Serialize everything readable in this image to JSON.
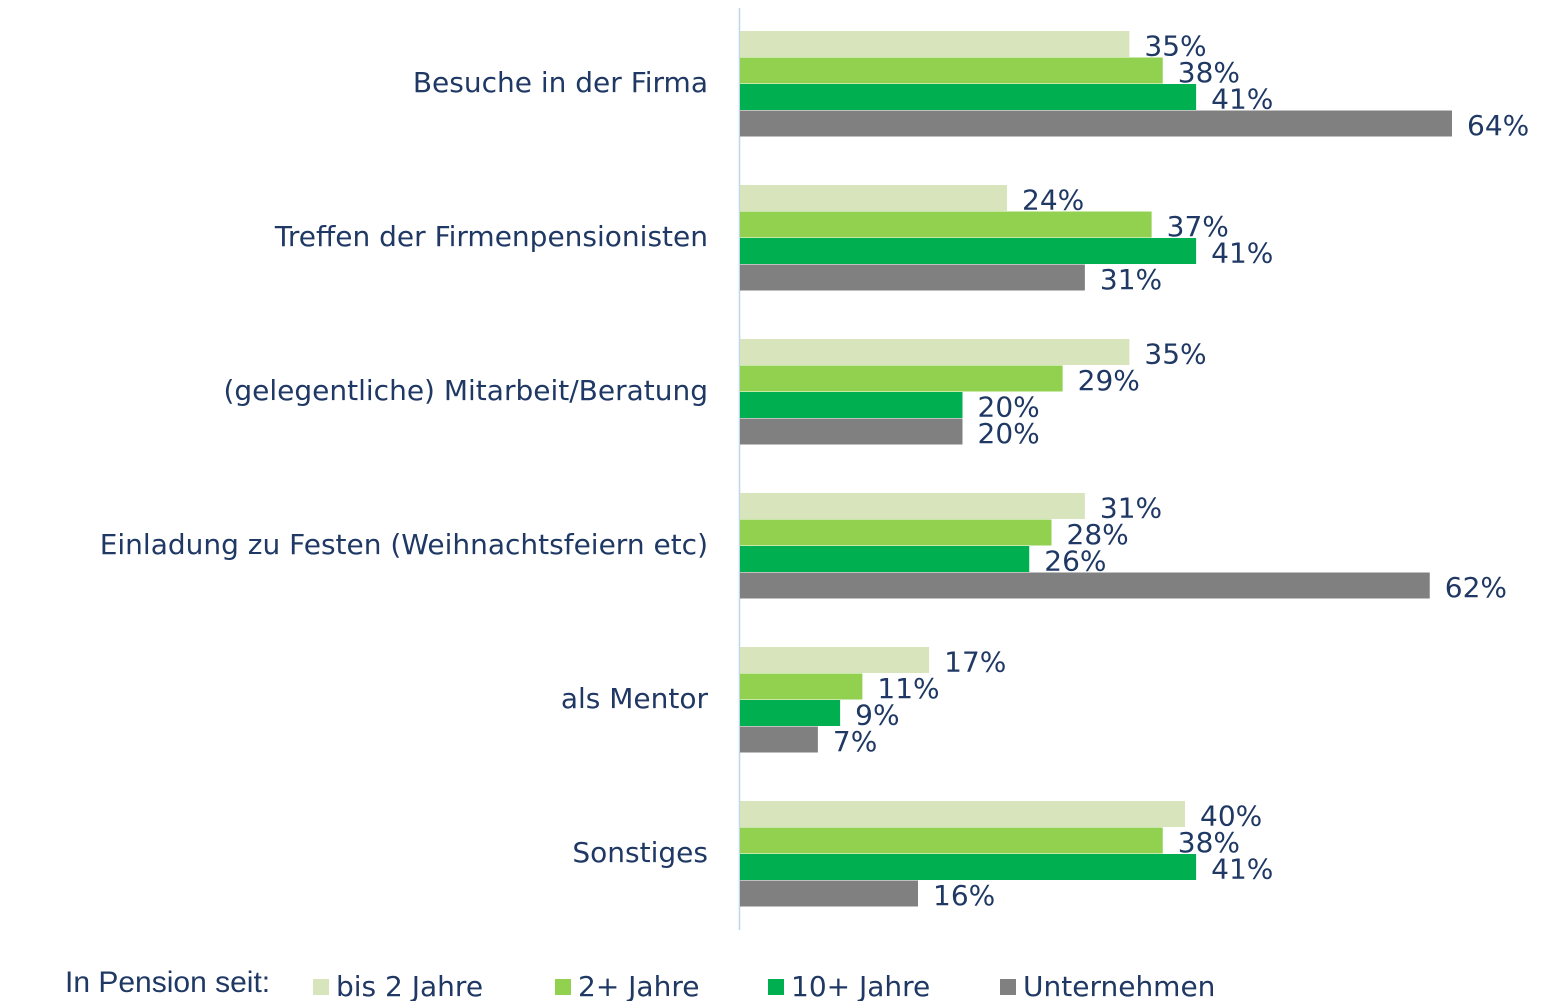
{
  "chart_data": {
    "type": "barh",
    "categories": [
      "Besuche in der Firma",
      "Treffen der Firmenpensionisten",
      "(gelegentliche) Mitarbeit/Beratung",
      "Einladung zu Festen (Weihnachtsfeiern etc)",
      "als Mentor",
      "Sonstiges"
    ],
    "series": [
      {
        "name": "bis 2 Jahre",
        "color": "#d8e4bc",
        "values": [
          35,
          24,
          35,
          31,
          17,
          40
        ],
        "value_labels": [
          "35%",
          "24%",
          "35%",
          "31%",
          "17%",
          "40%"
        ]
      },
      {
        "name": "2+ Jahre",
        "color": "#92d050",
        "values": [
          38,
          37,
          29,
          28,
          11,
          38
        ],
        "value_labels": [
          "38%",
          "37%",
          "29%",
          "28%",
          "11%",
          "38%"
        ]
      },
      {
        "name": "10+ Jahre",
        "color": "#00b050",
        "values": [
          41,
          41,
          20,
          26,
          9,
          41
        ],
        "value_labels": [
          "41%",
          "41%",
          "20%",
          "26%",
          "9%",
          "41%"
        ]
      },
      {
        "name": "Unternehmen",
        "color": "#808080",
        "values": [
          64,
          31,
          20,
          62,
          7,
          16
        ],
        "value_labels": [
          "64%",
          "31%",
          "20%",
          "62%",
          "7%",
          "16%"
        ]
      }
    ],
    "legend_title": "In Pension seit:",
    "legend": "bottom"
  }
}
